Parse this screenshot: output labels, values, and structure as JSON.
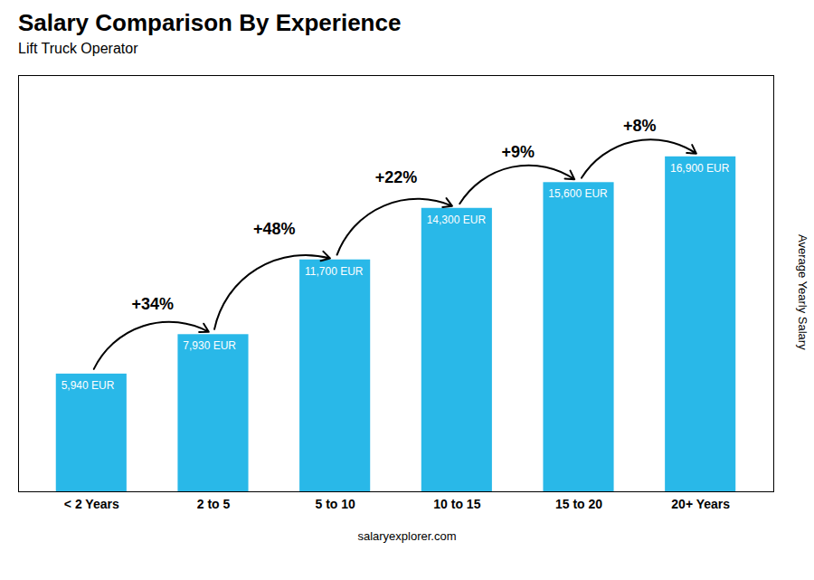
{
  "chart_data": {
    "type": "bar",
    "title": "Salary Comparison By Experience",
    "subtitle": "Lift Truck Operator",
    "ylabel": "Average Yearly Salary",
    "categories": [
      "< 2 Years",
      "2 to 5",
      "5 to 10",
      "10 to 15",
      "15 to 20",
      "20+ Years"
    ],
    "values": [
      5940,
      7930,
      11700,
      14300,
      15600,
      16900
    ],
    "value_labels": [
      "5,940 EUR",
      "7,930 EUR",
      "11,700 EUR",
      "14,300 EUR",
      "15,600 EUR",
      "16,900 EUR"
    ],
    "data_labels": true,
    "color": "#29B8E8",
    "ylim": [
      0,
      21000
    ],
    "tick_labels": "x",
    "grid": false,
    "annotations": [
      "+34%",
      "+48%",
      "+22%",
      "+9%",
      "+8%"
    ],
    "footer": "salaryexplorer.com"
  }
}
